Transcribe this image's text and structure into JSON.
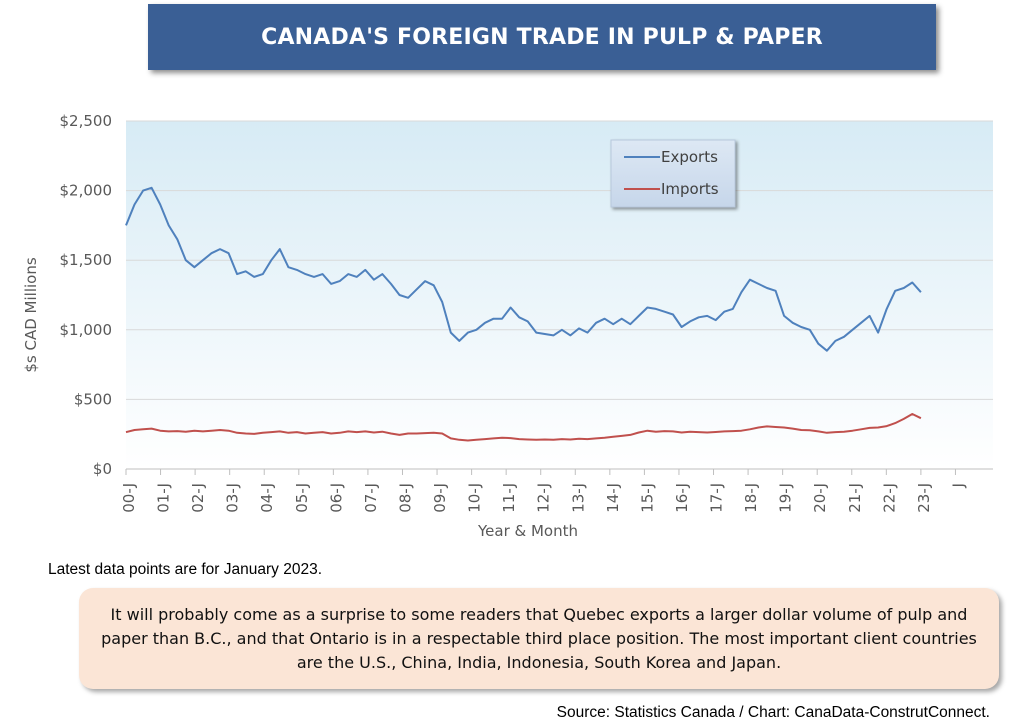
{
  "title": "CANADA'S FOREIGN TRADE IN PULP & PAPER",
  "note": "Latest data points are for January 2023.",
  "commentary": "It will probably come as a surprise to some readers that Quebec exports a larger dollar volume of pulp and paper than B.C., and that Ontario is in a respectable third place position. The most important client countries are the U.S., China, India, Indonesia, South Korea and Japan.",
  "source": "Source: Statistics Canada / Chart: CanaData-ConstrutConnect.",
  "chart_data": {
    "type": "line",
    "xlabel": "Year & Month",
    "ylabel": "$s CAD Millions",
    "ylim": [
      0,
      2500
    ],
    "y_ticks": [
      0,
      500,
      1000,
      1500,
      2000,
      2500
    ],
    "y_tick_labels": [
      "$0",
      "$500",
      "$1,000",
      "$1,500",
      "$2,000",
      "$2,500"
    ],
    "x_tick_labels": [
      "00-J",
      "01-J",
      "02-J",
      "03-J",
      "04-J",
      "05-J",
      "06-J",
      "07-J",
      "08-J",
      "09-J",
      "10-J",
      "11-J",
      "12-J",
      "13-J",
      "14-J",
      "15-J",
      "16-J",
      "17-J",
      "18-J",
      "19-J",
      "20-J",
      "21-J",
      "22-J",
      "23-J",
      "J"
    ],
    "x_start": "2000-01",
    "x_end": "2023-01",
    "grid": "horizontal",
    "legend_position": "top-right",
    "series": [
      {
        "name": "Exports",
        "color": "#4f81bd",
        "values": [
          1750,
          1900,
          2000,
          2020,
          1900,
          1750,
          1650,
          1500,
          1450,
          1500,
          1550,
          1580,
          1550,
          1400,
          1420,
          1380,
          1400,
          1500,
          1580,
          1450,
          1430,
          1400,
          1380,
          1400,
          1330,
          1350,
          1400,
          1380,
          1430,
          1360,
          1400,
          1330,
          1250,
          1230,
          1290,
          1350,
          1320,
          1200,
          980,
          920,
          980,
          1000,
          1050,
          1080,
          1080,
          1160,
          1090,
          1060,
          980,
          970,
          960,
          1000,
          960,
          1010,
          980,
          1050,
          1080,
          1040,
          1080,
          1040,
          1100,
          1160,
          1150,
          1130,
          1110,
          1020,
          1060,
          1090,
          1100,
          1070,
          1130,
          1150,
          1270,
          1360,
          1330,
          1300,
          1280,
          1100,
          1050,
          1020,
          1000,
          900,
          850,
          920,
          950,
          1000,
          1050,
          1100,
          980,
          1150,
          1280,
          1300,
          1340,
          1270
        ]
      },
      {
        "name": "Imports",
        "color": "#c0504d",
        "values": [
          265,
          280,
          285,
          290,
          275,
          270,
          272,
          268,
          275,
          270,
          275,
          280,
          275,
          260,
          255,
          252,
          260,
          265,
          270,
          260,
          265,
          255,
          260,
          265,
          255,
          260,
          270,
          265,
          270,
          262,
          268,
          255,
          245,
          255,
          255,
          258,
          260,
          255,
          220,
          210,
          205,
          210,
          215,
          220,
          225,
          222,
          215,
          212,
          210,
          212,
          210,
          215,
          212,
          218,
          215,
          220,
          225,
          232,
          238,
          245,
          262,
          275,
          268,
          272,
          270,
          262,
          268,
          265,
          262,
          266,
          270,
          272,
          275,
          285,
          298,
          306,
          302,
          298,
          290,
          280,
          278,
          270,
          260,
          265,
          268,
          275,
          285,
          295,
          298,
          308,
          330,
          360,
          395,
          365
        ]
      }
    ]
  }
}
